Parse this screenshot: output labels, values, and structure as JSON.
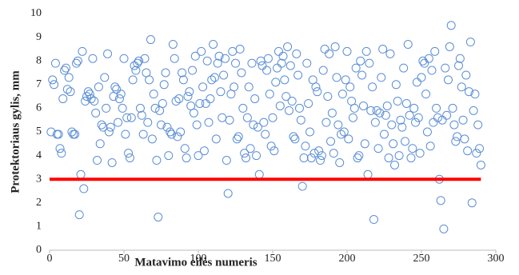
{
  "chart_data": {
    "type": "scatter",
    "xlabel": "Matavimo eilės numeris",
    "ylabel": "Protektoriaus gylis, mm",
    "xlim": [
      0,
      300
    ],
    "xticks": [
      0,
      50,
      100,
      150,
      200,
      250,
      300
    ],
    "ylim": [
      0,
      10
    ],
    "yticks": [
      0,
      1,
      2,
      3,
      4,
      5,
      6,
      7,
      8,
      9,
      10
    ],
    "grid": false,
    "series": [
      {
        "color": "#5b8ed6",
        "x": [
          1,
          2,
          3,
          4,
          5,
          6,
          7,
          8,
          9,
          10,
          11,
          12,
          13,
          14,
          15,
          16,
          17,
          18,
          19,
          20,
          21,
          22,
          23,
          24,
          25,
          26,
          27,
          28,
          29,
          30,
          31,
          32,
          33,
          34,
          35,
          36,
          37,
          38,
          39,
          40,
          41,
          42,
          43,
          44,
          45,
          46,
          47,
          48,
          49,
          50,
          51,
          52,
          53,
          54,
          55,
          56,
          57,
          58,
          59,
          60,
          61,
          62,
          63,
          64,
          65,
          66,
          67,
          68,
          69,
          70,
          71,
          72,
          73,
          74,
          75,
          76,
          77,
          78,
          79,
          80,
          81,
          82,
          83,
          84,
          85,
          86,
          87,
          88,
          89,
          90,
          91,
          92,
          93,
          94,
          95,
          96,
          97,
          98,
          99,
          100,
          101,
          102,
          103,
          104,
          105,
          106,
          107,
          108,
          109,
          110,
          111,
          112,
          113,
          114,
          115,
          116,
          117,
          118,
          119,
          120,
          121,
          122,
          123,
          124,
          125,
          126,
          127,
          128,
          129,
          130,
          131,
          132,
          133,
          134,
          135,
          136,
          137,
          138,
          139,
          140,
          141,
          142,
          143,
          144,
          145,
          146,
          147,
          148,
          149,
          150,
          151,
          152,
          153,
          154,
          155,
          156,
          157,
          158,
          159,
          160,
          161,
          162,
          163,
          164,
          165,
          166,
          167,
          168,
          169,
          170,
          171,
          172,
          173,
          174,
          175,
          176,
          177,
          178,
          179,
          180,
          181,
          182,
          183,
          184,
          185,
          186,
          187,
          188,
          189,
          190,
          191,
          192,
          193,
          194,
          195,
          196,
          197,
          198,
          199,
          200,
          201,
          202,
          203,
          204,
          205,
          206,
          207,
          208,
          209,
          210,
          211,
          212,
          213,
          214,
          215,
          216,
          217,
          218,
          219,
          220,
          221,
          222,
          223,
          224,
          225,
          226,
          227,
          228,
          229,
          230,
          231,
          232,
          233,
          234,
          235,
          236,
          237,
          238,
          239,
          240,
          241,
          242,
          243,
          244,
          245,
          246,
          247,
          248,
          249,
          250,
          251,
          252,
          253,
          254,
          255,
          256,
          257,
          258,
          259,
          260,
          261,
          262,
          263,
          264,
          265,
          266,
          267,
          268,
          269,
          270,
          271,
          272,
          273,
          274,
          275,
          276,
          277,
          278,
          279,
          280,
          281,
          282,
          283,
          284,
          285,
          286,
          287,
          288,
          289,
          290
        ],
        "values": [
          5.0,
          7.2,
          7.0,
          7.9,
          4.9,
          4.9,
          4.3,
          4.1,
          6.4,
          7.6,
          7.7,
          6.8,
          7.3,
          6.7,
          5.0,
          4.9,
          4.9,
          7.9,
          8.0,
          1.5,
          3.2,
          8.4,
          2.6,
          6.3,
          6.5,
          6.7,
          6.6,
          6.4,
          8.1,
          6.3,
          5.8,
          3.8,
          6.9,
          4.5,
          5.3,
          5.2,
          7.3,
          6.0,
          8.3,
          5.0,
          5.2,
          3.7,
          6.5,
          6.9,
          6.8,
          5.4,
          6.4,
          6.6,
          6.0,
          8.1,
          4.9,
          5.6,
          4.1,
          3.9,
          5.6,
          7.2,
          7.8,
          7.6,
          7.9,
          8.0,
          6.0,
          5.7,
          4.9,
          8.1,
          7.5,
          5.4,
          7.2,
          8.9,
          4.7,
          6.6,
          6.0,
          3.8,
          1.4,
          5.9,
          5.3,
          6.2,
          7.0,
          7.5,
          5.2,
          4.0,
          5.0,
          4.9,
          8.7,
          8.1,
          6.3,
          4.8,
          6.4,
          5.0,
          7.5,
          7.2,
          4.3,
          3.9,
          6.5,
          6.7,
          6.1,
          7.6,
          5.8,
          8.2,
          5.3,
          4.0,
          6.2,
          8.4,
          6.9,
          4.2,
          6.2,
          8.0,
          5.4,
          6.4,
          7.2,
          8.7,
          7.3,
          4.7,
          7.9,
          8.2,
          6.7,
          5.6,
          7.4,
          8.1,
          3.8,
          2.4,
          5.5,
          6.6,
          8.4,
          6.9,
          7.9,
          4.7,
          4.8,
          8.5,
          7.5,
          6.0,
          4.1,
          3.9,
          5.6,
          6.9,
          4.3,
          7.9,
          5.3,
          6.4,
          4.0,
          5.2,
          3.2,
          8.0,
          7.8,
          5.4,
          4.9,
          7.6,
          8.1,
          6.6,
          4.4,
          5.6,
          4.2,
          7.1,
          7.7,
          8.4,
          6.1,
          7.9,
          8.2,
          7.2,
          6.5,
          8.6,
          5.9,
          7.8,
          6.3,
          4.8,
          4.7,
          8.3,
          7.4,
          6.0,
          5.5,
          2.7,
          3.9,
          4.4,
          7.9,
          6.2,
          5.0,
          3.9,
          7.2,
          4.1,
          6.9,
          6.7,
          4.2,
          3.8,
          4.0,
          7.6,
          8.5,
          5.4,
          6.5,
          8.3,
          4.6,
          5.8,
          4.1,
          8.6,
          7.3,
          5.3,
          3.7,
          4.9,
          6.6,
          5.0,
          7.2,
          8.4,
          4.7,
          6.9,
          6.3,
          5.6,
          6.0,
          7.7,
          3.9,
          4.0,
          8.0,
          7.4,
          6.1,
          4.5,
          8.4,
          3.2,
          7.9,
          5.9,
          6.9,
          1.3,
          5.4,
          5.9,
          4.3,
          5.8,
          7.3,
          8.5,
          4.9,
          5.7,
          6.1,
          3.9,
          8.3,
          5.3,
          4.5,
          3.6,
          7.0,
          6.3,
          4.0,
          5.5,
          5.2,
          7.7,
          4.6,
          6.2,
          8.7,
          5.7,
          3.9,
          4.3,
          6.0,
          5.4,
          7.1,
          5.6,
          4.1,
          7.3,
          8.0,
          7.9,
          6.6,
          5.0,
          8.1,
          4.4,
          7.6,
          5.4,
          8.4,
          6.0,
          5.6,
          3.0,
          2.1,
          5.5,
          0.9,
          7.7,
          5.7,
          7.2,
          8.6,
          9.5,
          6.0,
          5.3,
          4.6,
          4.8,
          7.8,
          8.1,
          6.9,
          5.5,
          4.7,
          7.4,
          4.2,
          6.7,
          8.8,
          2.0,
          5.9,
          6.6,
          4.1,
          5.3,
          4.3,
          3.6
        ]
      }
    ],
    "reference_line": {
      "y": 3,
      "x": [
        0,
        290
      ],
      "color": "#ff0000"
    }
  }
}
